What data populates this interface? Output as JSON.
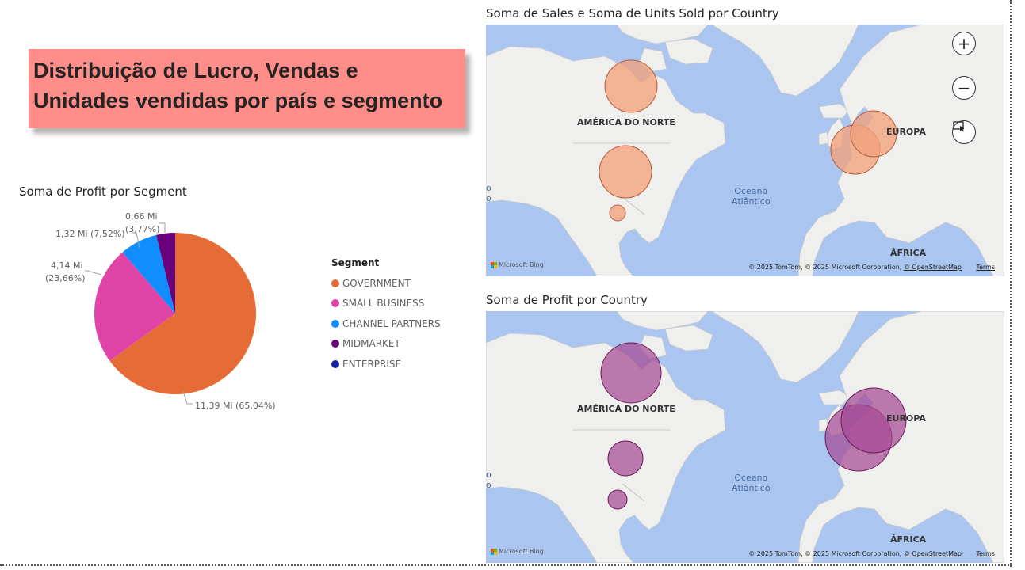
{
  "report": {
    "title_line1": "Distribuição de Lucro, Vendas e",
    "title_line2": "Unidades vendidas por país e segmento"
  },
  "pie_visual": {
    "title": "Soma de Profit por Segment",
    "legend_title": "Segment",
    "labels": {
      "government": "11,39 Mi (65,04%)",
      "small_business_1": "4,14 Mi",
      "small_business_2": "(23,66%)",
      "channel_partners": "1,32 Mi (7,52%)",
      "midmarket_1": "0,66 Mi",
      "midmarket_2": "(3,77%)"
    },
    "legend": [
      {
        "label": "GOVERNMENT",
        "color": "#e66c37"
      },
      {
        "label": "SMALL BUSINESS",
        "color": "#e044a7"
      },
      {
        "label": "CHANNEL PARTNERS",
        "color": "#118dff"
      },
      {
        "label": "MIDMARKET",
        "color": "#6b007b"
      },
      {
        "label": "ENTERPRISE",
        "color": "#12239e"
      }
    ]
  },
  "chart_data": {
    "type": "pie",
    "title": "Soma de Profit por Segment",
    "categories": [
      "GOVERNMENT",
      "SMALL BUSINESS",
      "CHANNEL PARTNERS",
      "MIDMARKET",
      "ENTERPRISE"
    ],
    "values": [
      11.39,
      4.14,
      1.32,
      0.66,
      0
    ],
    "percentages": [
      65.04,
      23.66,
      7.52,
      3.77,
      0
    ],
    "unit": "Mi",
    "colors": [
      "#e66c37",
      "#e044a7",
      "#118dff",
      "#6b007b",
      "#12239e"
    ],
    "legend_position": "right"
  },
  "map_sales": {
    "title": "Soma de Sales e Soma de Units Sold por Country",
    "bubble_color": "#f2a27c",
    "bubble_stroke": "#b85c3b",
    "bubbles": [
      "Canada",
      "United States of America",
      "Mexico",
      "France",
      "Germany"
    ]
  },
  "map_profit": {
    "title": "Soma de Profit por Country",
    "bubble_color": "#a64a94",
    "bubble_stroke": "#6a1c5a",
    "bubbles": [
      "Canada",
      "United States of America",
      "Mexico",
      "France",
      "Germany"
    ]
  },
  "map_common": {
    "label_na": "AMÉRICA DO NORTE",
    "label_eu": "EUROPA",
    "label_af": "ÁFRICA",
    "ocean_line1": "Oceano",
    "ocean_line2": "Atlântico",
    "edge_text": "o",
    "bing": "Microsoft Bing",
    "attribution": "© 2025 TomTom, © 2025 Microsoft Corporation, ",
    "attribution_link": "© OpenStreetMap",
    "terms": "Terms",
    "zoom_in": "+",
    "zoom_out": "−",
    "select_icon": "selection-tool-icon"
  }
}
